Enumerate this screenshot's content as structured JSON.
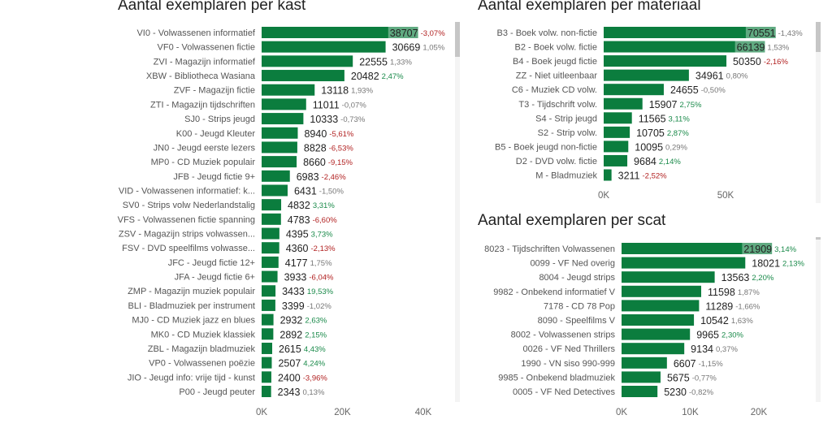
{
  "colors": {
    "bar": "#0b7d3e",
    "bar_overlap": "#56a77a",
    "positive": "#1a8a4a",
    "negative": "#b22222",
    "neutral": "#777777",
    "value_text": "#222222",
    "label_text": "#555555",
    "axis_text": "#666666"
  },
  "chart_data": [
    {
      "id": "kast",
      "type": "bar",
      "orientation": "horizontal",
      "title": "Aantal exemplaren per kast",
      "xlim": [
        0,
        40000
      ],
      "xticks": [
        "0K",
        "20K",
        "40K"
      ],
      "xtick_values": [
        0,
        20000,
        40000
      ],
      "scrolled": "top",
      "categories": [
        "VI0 - Volwassenen informatief",
        "VF0 - Volwassenen fictie",
        "ZVI - Magazijn informatief",
        "XBW - Bibliotheca Wasiana",
        "ZVF - Magazijn fictie",
        "ZTI - Magazijn tijdschriften",
        "SJ0 - Strips jeugd",
        "K00 - Jeugd Kleuter",
        "JN0 - Jeugd eerste lezers",
        "MP0 - CD Muziek populair",
        "JFB - Jeugd fictie 9+",
        "VID - Volwassenen informatief: k...",
        "SV0 - Strips volw Nederlandstalig",
        "VFS - Volwassenen fictie spanning",
        "ZSV - Magazijn strips volwassen...",
        "FSV - DVD speelfilms volwasse...",
        "JFC - Jeugd fictie 12+",
        "JFA - Jeugd fictie 6+",
        "ZMP - Magazijn muziek populair",
        "BLI - Bladmuziek per instrument",
        "MJ0 - CD Muziek jazz en blues",
        "MK0 - CD Muziek klassiek",
        "ZBL - Magazijn bladmuziek",
        "VP0 - Volwassenen poëzie",
        "JIO - Jeugd info: vrije tijd - kunst",
        "P00 - Jeugd peuter"
      ],
      "values": [
        38707,
        30669,
        22555,
        20482,
        13118,
        11011,
        10333,
        8940,
        8828,
        8660,
        6983,
        6431,
        4832,
        4783,
        4395,
        4360,
        4177,
        3933,
        3433,
        3399,
        2932,
        2892,
        2615,
        2507,
        2400,
        2343
      ],
      "changes": [
        "-3,07%",
        "1,05%",
        "1,33%",
        "2,47%",
        "1,93%",
        "-0,07%",
        "-0,73%",
        "-5,61%",
        "-6,53%",
        "-9,15%",
        "-2,46%",
        "-1,50%",
        "3,31%",
        "-6,60%",
        "3,73%",
        "-2,13%",
        "1,75%",
        "-6,04%",
        "19,53%",
        "-1,02%",
        "2,63%",
        "2,15%",
        "4,43%",
        "4,24%",
        "-3,96%",
        "0,13%"
      ],
      "change_status": [
        "negative",
        "neutral",
        "neutral",
        "positive",
        "neutral",
        "neutral",
        "neutral",
        "negative",
        "negative",
        "negative",
        "negative",
        "neutral",
        "positive",
        "negative",
        "positive",
        "negative",
        "neutral",
        "negative",
        "positive",
        "neutral",
        "positive",
        "positive",
        "positive",
        "positive",
        "negative",
        "neutral"
      ]
    },
    {
      "id": "materiaal",
      "type": "bar",
      "orientation": "horizontal",
      "title": "Aantal exemplaren per materiaal",
      "xlim": [
        0,
        70000
      ],
      "xticks": [
        "0K",
        "50K"
      ],
      "xtick_values": [
        0,
        50000
      ],
      "scrolled": "top",
      "categories": [
        "B3 - Boek volw. non-fictie",
        "B2 - Boek volw. fictie",
        "B4 - Boek jeugd fictie",
        "ZZ - Niet uitleenbaar",
        "C6 - Muziek CD volw.",
        "T3 - Tijdschrift volw.",
        "S4 - Strip jeugd",
        "S2 - Strip volw.",
        "B5 - Boek jeugd non-fictie",
        "D2 - DVD volw. fictie",
        "M - Bladmuziek"
      ],
      "values": [
        70551,
        66139,
        50350,
        34961,
        24655,
        15907,
        11565,
        10705,
        10095,
        9684,
        3211
      ],
      "changes": [
        "-1,43%",
        "1,53%",
        "-2,16%",
        "0,80%",
        "-0,50%",
        "2,75%",
        "3,11%",
        "2,87%",
        "0,29%",
        "2,14%",
        "-2,52%"
      ],
      "change_status": [
        "neutral",
        "neutral",
        "negative",
        "neutral",
        "neutral",
        "positive",
        "positive",
        "positive",
        "neutral",
        "positive",
        "negative"
      ]
    },
    {
      "id": "scat",
      "type": "bar",
      "orientation": "horizontal",
      "title": "Aantal exemplaren per scat",
      "xlim": [
        0,
        20000
      ],
      "xticks": [
        "0K",
        "10K",
        "20K"
      ],
      "xtick_values": [
        0,
        10000,
        20000
      ],
      "scrolled": "top",
      "categories": [
        "8023 - Tijdschriften Volwassenen",
        "0099 - VF Ned overig",
        "8004 - Jeugd strips",
        "9982 - Onbekend informatief V",
        "7178 - CD 78 Pop",
        "8090 - Speelfilms V",
        "8002 - Volwassenen strips",
        "0026 - VF Ned Thrillers",
        "1990 - VN siso 990-999",
        "9985 - Onbekend bladmuziek",
        "0005 - VF Ned Detectives"
      ],
      "values": [
        21909,
        18021,
        13563,
        11598,
        11289,
        10542,
        9965,
        9134,
        6607,
        5675,
        5230
      ],
      "changes": [
        "3,14%",
        "2,13%",
        "2,20%",
        "1,87%",
        "-1,66%",
        "1,63%",
        "2,30%",
        "0,37%",
        "-1,15%",
        "-0,77%",
        "-0,82%"
      ],
      "change_status": [
        "positive",
        "positive",
        "positive",
        "neutral",
        "neutral",
        "neutral",
        "positive",
        "neutral",
        "neutral",
        "neutral",
        "neutral"
      ]
    }
  ]
}
